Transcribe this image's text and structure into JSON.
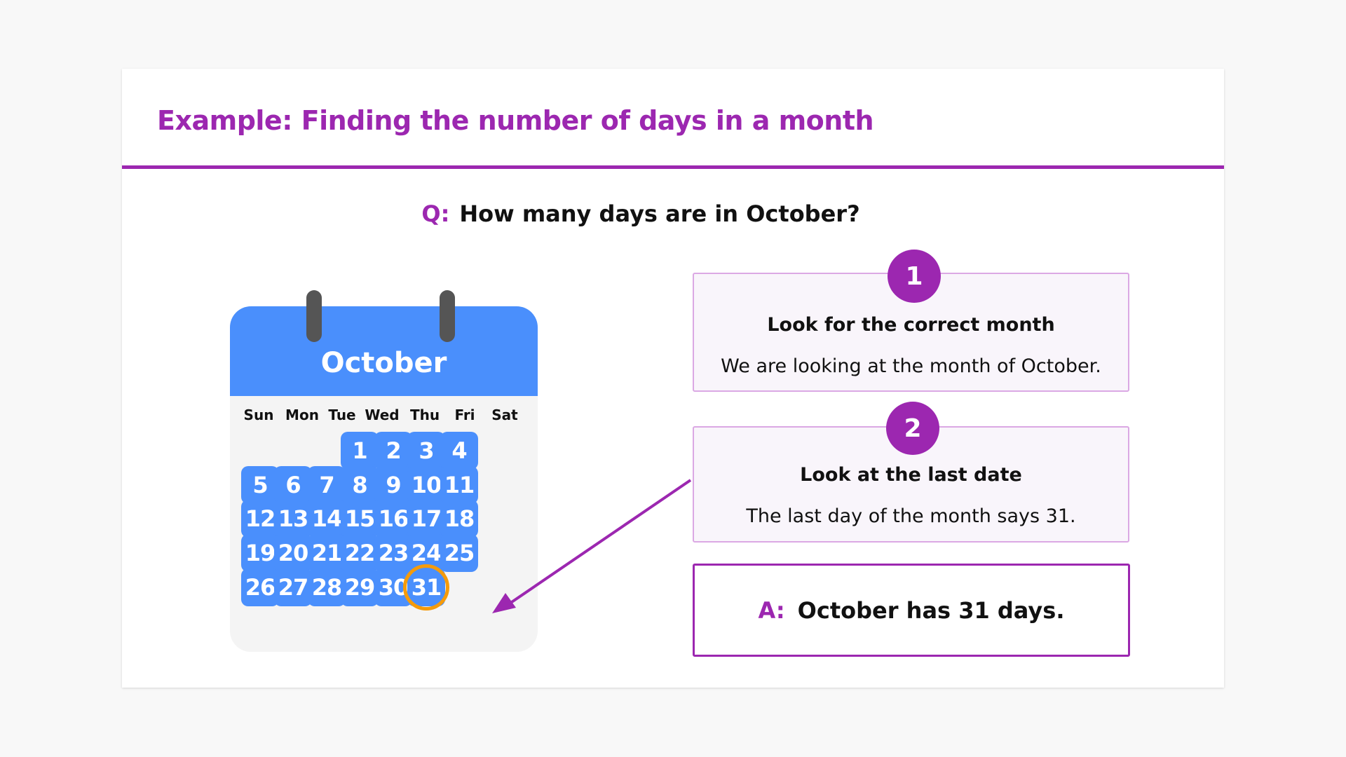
{
  "title": "Example: Finding the number of days in a month",
  "question": {
    "label": "Q:",
    "text": "How many days are in October?"
  },
  "calendar": {
    "month": "October",
    "day_names": [
      "Sun",
      "Mon",
      "Tue",
      "Wed",
      "Thu",
      "Fri",
      "Sat"
    ],
    "first_weekday": 3,
    "days": 31,
    "highlighted_day": 31
  },
  "steps": [
    {
      "number": "1",
      "title": "Look for the correct month",
      "text": "We are looking at the month of October."
    },
    {
      "number": "2",
      "title": "Look at the last date",
      "text": "The last day of the month says 31."
    }
  ],
  "answer": {
    "label": "A:",
    "text": "October has 31 days."
  },
  "colors": {
    "accent": "#9c27b0",
    "calendar": "#4a8ffc",
    "highlight": "#f59b0b"
  }
}
